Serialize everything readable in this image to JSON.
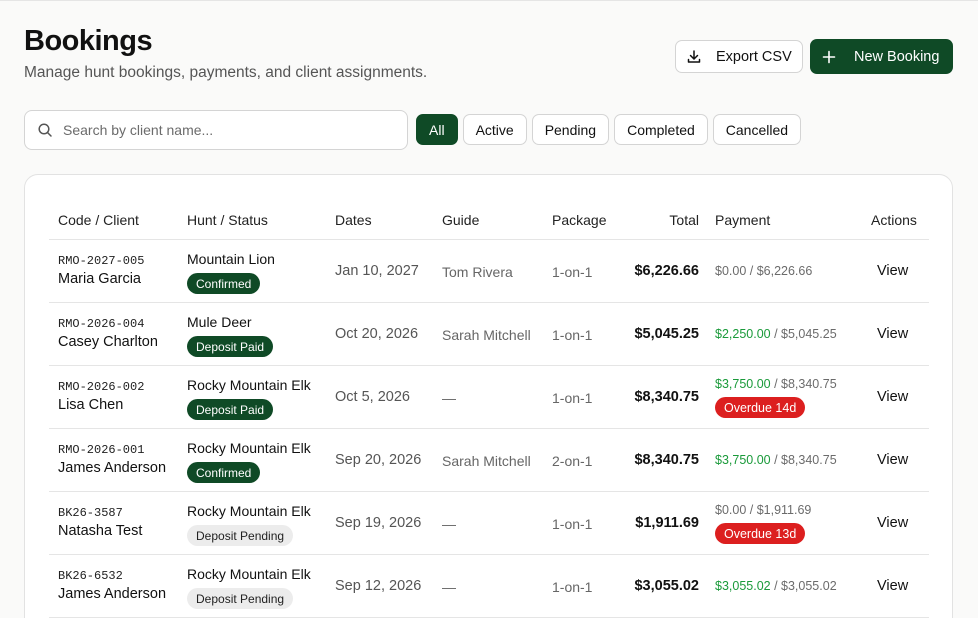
{
  "header": {
    "title": "Bookings",
    "subtitle": "Manage hunt bookings, payments, and client assignments.",
    "export_label": "Export CSV",
    "new_label": "New Booking"
  },
  "search": {
    "placeholder": "Search by client name..."
  },
  "filters": [
    {
      "label": "All",
      "active": true
    },
    {
      "label": "Active",
      "active": false
    },
    {
      "label": "Pending",
      "active": false
    },
    {
      "label": "Completed",
      "active": false
    },
    {
      "label": "Cancelled",
      "active": false
    }
  ],
  "table": {
    "columns": {
      "code_client": "Code / Client",
      "hunt_status": "Hunt / Status",
      "dates": "Dates",
      "guide": "Guide",
      "package": "Package",
      "total": "Total",
      "payment": "Payment",
      "actions": "Actions"
    },
    "rows": [
      {
        "code": "RMO-2027-005",
        "client": "Maria Garcia",
        "hunt": "Mountain Lion",
        "status": "Confirmed",
        "status_style": "dark",
        "dates": "Jan 10, 2027",
        "guide": "Tom Rivera",
        "package": "1-on-1",
        "total": "$6,226.66",
        "paid": "$0.00",
        "paid_green": false,
        "pay_total": "$6,226.66",
        "overdue": "",
        "action": "View"
      },
      {
        "code": "RMO-2026-004",
        "client": "Casey Charlton",
        "hunt": "Mule Deer",
        "status": "Deposit Paid",
        "status_style": "dark",
        "dates": "Oct 20, 2026",
        "guide": "Sarah Mitchell",
        "package": "1-on-1",
        "total": "$5,045.25",
        "paid": "$2,250.00",
        "paid_green": true,
        "pay_total": "$5,045.25",
        "overdue": "",
        "action": "View"
      },
      {
        "code": "RMO-2026-002",
        "client": "Lisa Chen",
        "hunt": "Rocky Mountain Elk",
        "status": "Deposit Paid",
        "status_style": "dark",
        "dates": "Oct 5, 2026",
        "guide": "—",
        "package": "1-on-1",
        "total": "$8,340.75",
        "paid": "$3,750.00",
        "paid_green": true,
        "pay_total": "$8,340.75",
        "overdue": "Overdue 14d",
        "action": "View"
      },
      {
        "code": "RMO-2026-001",
        "client": "James Anderson",
        "hunt": "Rocky Mountain Elk",
        "status": "Confirmed",
        "status_style": "dark",
        "dates": "Sep 20, 2026",
        "guide": "Sarah Mitchell",
        "package": "2-on-1",
        "total": "$8,340.75",
        "paid": "$3,750.00",
        "paid_green": true,
        "pay_total": "$8,340.75",
        "overdue": "",
        "action": "View"
      },
      {
        "code": "BK26-3587",
        "client": "Natasha Test",
        "hunt": "Rocky Mountain Elk",
        "status": "Deposit Pending",
        "status_style": "light",
        "dates": "Sep 19, 2026",
        "guide": "—",
        "package": "1-on-1",
        "total": "$1,911.69",
        "paid": "$0.00",
        "paid_green": false,
        "pay_total": "$1,911.69",
        "overdue": "Overdue 13d",
        "action": "View"
      },
      {
        "code": "BK26-6532",
        "client": "James Anderson",
        "hunt": "Rocky Mountain Elk",
        "status": "Deposit Pending",
        "status_style": "light",
        "dates": "Sep 12, 2026",
        "guide": "—",
        "package": "1-on-1",
        "total": "$3,055.02",
        "paid": "$3,055.02",
        "paid_green": true,
        "pay_total": "$3,055.02",
        "overdue": "",
        "action": "View"
      }
    ]
  },
  "colors": {
    "brand_green": "#0f4a26",
    "paid_green": "#1a9a3a",
    "overdue_red": "#dc1f1f"
  },
  "icons": {
    "export": "download-icon",
    "new": "plus-icon",
    "search": "search-icon"
  }
}
